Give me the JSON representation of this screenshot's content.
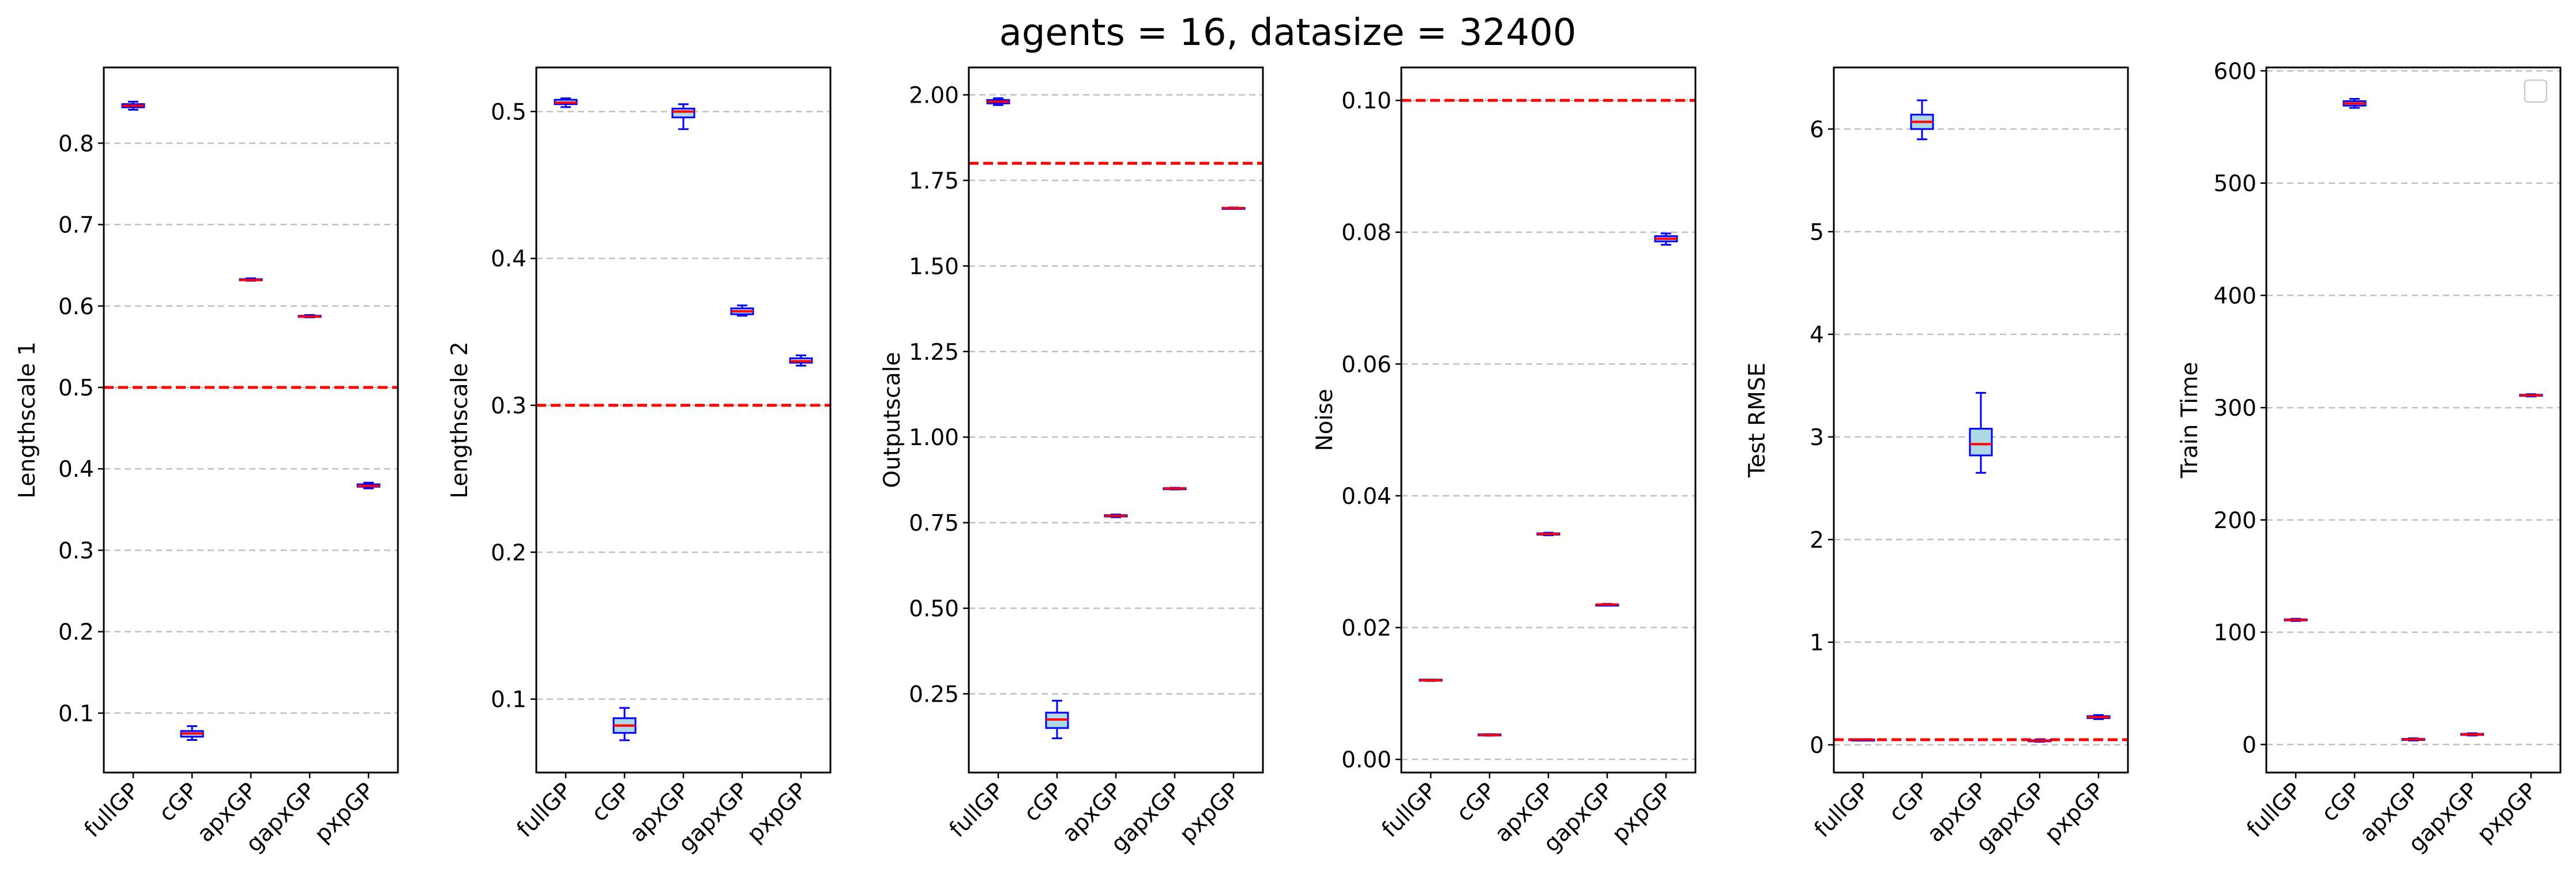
{
  "figure": {
    "title": "agents = 16, datasize = 32400"
  },
  "colors": {
    "box_edge": "#0000ff",
    "box_fill": "#add8e6",
    "median": "#ff0000",
    "reference_line": "#ff0000",
    "grid": "#c0c0c0",
    "axes": "#000000"
  },
  "chart_data": [
    {
      "type": "box",
      "ylabel": "Lengthscale 1",
      "categories": [
        "fullGP",
        "cGP",
        "apxGP",
        "gapxGP",
        "pxpGP"
      ],
      "ylim": [
        0.027,
        0.893
      ],
      "yticks": [
        0.1,
        0.2,
        0.3,
        0.4,
        0.5,
        0.6,
        0.7,
        0.8
      ],
      "yticklabels": [
        "0.1",
        "0.2",
        "0.3",
        "0.4",
        "0.5",
        "0.6",
        "0.7",
        "0.8"
      ],
      "grid": "horizontal dashed",
      "reference_line": 0.5,
      "boxes": [
        {
          "min": 0.841,
          "q1": 0.844,
          "median": 0.846,
          "q3": 0.848,
          "max": 0.851
        },
        {
          "min": 0.067,
          "q1": 0.071,
          "median": 0.075,
          "q3": 0.078,
          "max": 0.084
        },
        {
          "min": 0.631,
          "q1": 0.632,
          "median": 0.632,
          "q3": 0.633,
          "max": 0.634
        },
        {
          "min": 0.586,
          "q1": 0.587,
          "median": 0.587,
          "q3": 0.588,
          "max": 0.589
        },
        {
          "min": 0.376,
          "q1": 0.378,
          "median": 0.379,
          "q3": 0.381,
          "max": 0.383
        }
      ]
    },
    {
      "type": "box",
      "ylabel": "Lengthscale 2",
      "categories": [
        "fullGP",
        "cGP",
        "apxGP",
        "gapxGP",
        "pxpGP"
      ],
      "ylim": [
        0.05,
        0.53
      ],
      "yticks": [
        0.1,
        0.2,
        0.3,
        0.4,
        0.5
      ],
      "yticklabels": [
        "0.1",
        "0.2",
        "0.3",
        "0.4",
        "0.5"
      ],
      "grid": "horizontal dashed",
      "reference_line": 0.3,
      "boxes": [
        {
          "min": 0.503,
          "q1": 0.505,
          "median": 0.506,
          "q3": 0.508,
          "max": 0.509
        },
        {
          "min": 0.072,
          "q1": 0.077,
          "median": 0.082,
          "q3": 0.087,
          "max": 0.094
        },
        {
          "min": 0.488,
          "q1": 0.496,
          "median": 0.5,
          "q3": 0.502,
          "max": 0.505
        },
        {
          "min": 0.361,
          "q1": 0.362,
          "median": 0.364,
          "q3": 0.366,
          "max": 0.368
        },
        {
          "min": 0.327,
          "q1": 0.329,
          "median": 0.33,
          "q3": 0.332,
          "max": 0.334
        }
      ]
    },
    {
      "type": "box",
      "ylabel": "Outputscale",
      "categories": [
        "fullGP",
        "cGP",
        "apxGP",
        "gapxGP",
        "pxpGP"
      ],
      "ylim": [
        0.02,
        2.08
      ],
      "yticks": [
        0.25,
        0.5,
        0.75,
        1.0,
        1.25,
        1.5,
        1.75,
        2.0
      ],
      "yticklabels": [
        "0.25",
        "0.50",
        "0.75",
        "1.00",
        "1.25",
        "1.50",
        "1.75",
        "2.00"
      ],
      "grid": "horizontal dashed",
      "reference_line": 1.8,
      "boxes": [
        {
          "min": 1.97,
          "q1": 1.975,
          "median": 1.98,
          "q3": 1.985,
          "max": 1.99
        },
        {
          "min": 0.12,
          "q1": 0.15,
          "median": 0.175,
          "q3": 0.195,
          "max": 0.23
        },
        {
          "min": 0.766,
          "q1": 0.768,
          "median": 0.77,
          "q3": 0.772,
          "max": 0.774
        },
        {
          "min": 0.847,
          "q1": 0.848,
          "median": 0.85,
          "q3": 0.851,
          "max": 0.852
        },
        {
          "min": 1.667,
          "q1": 1.668,
          "median": 1.669,
          "q3": 1.67,
          "max": 1.671
        }
      ]
    },
    {
      "type": "box",
      "ylabel": "Noise",
      "categories": [
        "fullGP",
        "cGP",
        "apxGP",
        "gapxGP",
        "pxpGP"
      ],
      "ylim": [
        -0.002,
        0.105
      ],
      "yticks": [
        0.0,
        0.02,
        0.04,
        0.06,
        0.08,
        0.1
      ],
      "yticklabels": [
        "0.00",
        "0.02",
        "0.04",
        "0.06",
        "0.08",
        "0.10"
      ],
      "grid": "horizontal dashed",
      "reference_line": 0.1,
      "boxes": [
        {
          "min": 0.0119,
          "q1": 0.012,
          "median": 0.012,
          "q3": 0.0121,
          "max": 0.0121
        },
        {
          "min": 0.0036,
          "q1": 0.0037,
          "median": 0.0037,
          "q3": 0.0038,
          "max": 0.0038
        },
        {
          "min": 0.034,
          "q1": 0.0341,
          "median": 0.0342,
          "q3": 0.0343,
          "max": 0.0344
        },
        {
          "min": 0.0234,
          "q1": 0.0234,
          "median": 0.0235,
          "q3": 0.0235,
          "max": 0.0236
        },
        {
          "min": 0.0781,
          "q1": 0.0786,
          "median": 0.079,
          "q3": 0.0794,
          "max": 0.0798
        }
      ]
    },
    {
      "type": "box",
      "ylabel": "Test RMSE",
      "categories": [
        "fullGP",
        "cGP",
        "apxGP",
        "gapxGP",
        "pxpGP"
      ],
      "ylim": [
        -0.27,
        6.6
      ],
      "yticks": [
        0,
        1,
        2,
        3,
        4,
        5,
        6
      ],
      "yticklabels": [
        "0",
        "1",
        "2",
        "3",
        "4",
        "5",
        "6"
      ],
      "grid": "horizontal dashed",
      "reference_line": 0.05,
      "boxes": [
        {
          "min": 0.045,
          "q1": 0.048,
          "median": 0.05,
          "q3": 0.052,
          "max": 0.055
        },
        {
          "min": 5.9,
          "q1": 6.0,
          "median": 6.07,
          "q3": 6.14,
          "max": 6.28
        },
        {
          "min": 2.65,
          "q1": 2.82,
          "median": 2.93,
          "q3": 3.08,
          "max": 3.43
        },
        {
          "min": 0.03,
          "q1": 0.035,
          "median": 0.04,
          "q3": 0.045,
          "max": 0.05
        },
        {
          "min": 0.25,
          "q1": 0.26,
          "median": 0.27,
          "q3": 0.28,
          "max": 0.29
        }
      ]
    },
    {
      "type": "box",
      "ylabel": "Train Time",
      "categories": [
        "fullGP",
        "cGP",
        "apxGP",
        "gapxGP",
        "pxpGP"
      ],
      "ylim": [
        -25,
        603
      ],
      "yticks": [
        0,
        100,
        200,
        300,
        400,
        500,
        600
      ],
      "yticklabels": [
        "0",
        "100",
        "200",
        "300",
        "400",
        "500",
        "600"
      ],
      "grid": "horizontal dashed",
      "legend": "top-right (empty)",
      "boxes": [
        {
          "min": 110,
          "q1": 110.5,
          "median": 111,
          "q3": 111.5,
          "max": 112
        },
        {
          "min": 567,
          "q1": 569,
          "median": 571,
          "q3": 573,
          "max": 575
        },
        {
          "min": 3.5,
          "q1": 4,
          "median": 4.5,
          "q3": 5,
          "max": 5.5
        },
        {
          "min": 8,
          "q1": 8.5,
          "median": 9,
          "q3": 9.5,
          "max": 10
        },
        {
          "min": 310,
          "q1": 310.5,
          "median": 311,
          "q3": 311.5,
          "max": 312
        }
      ]
    }
  ]
}
